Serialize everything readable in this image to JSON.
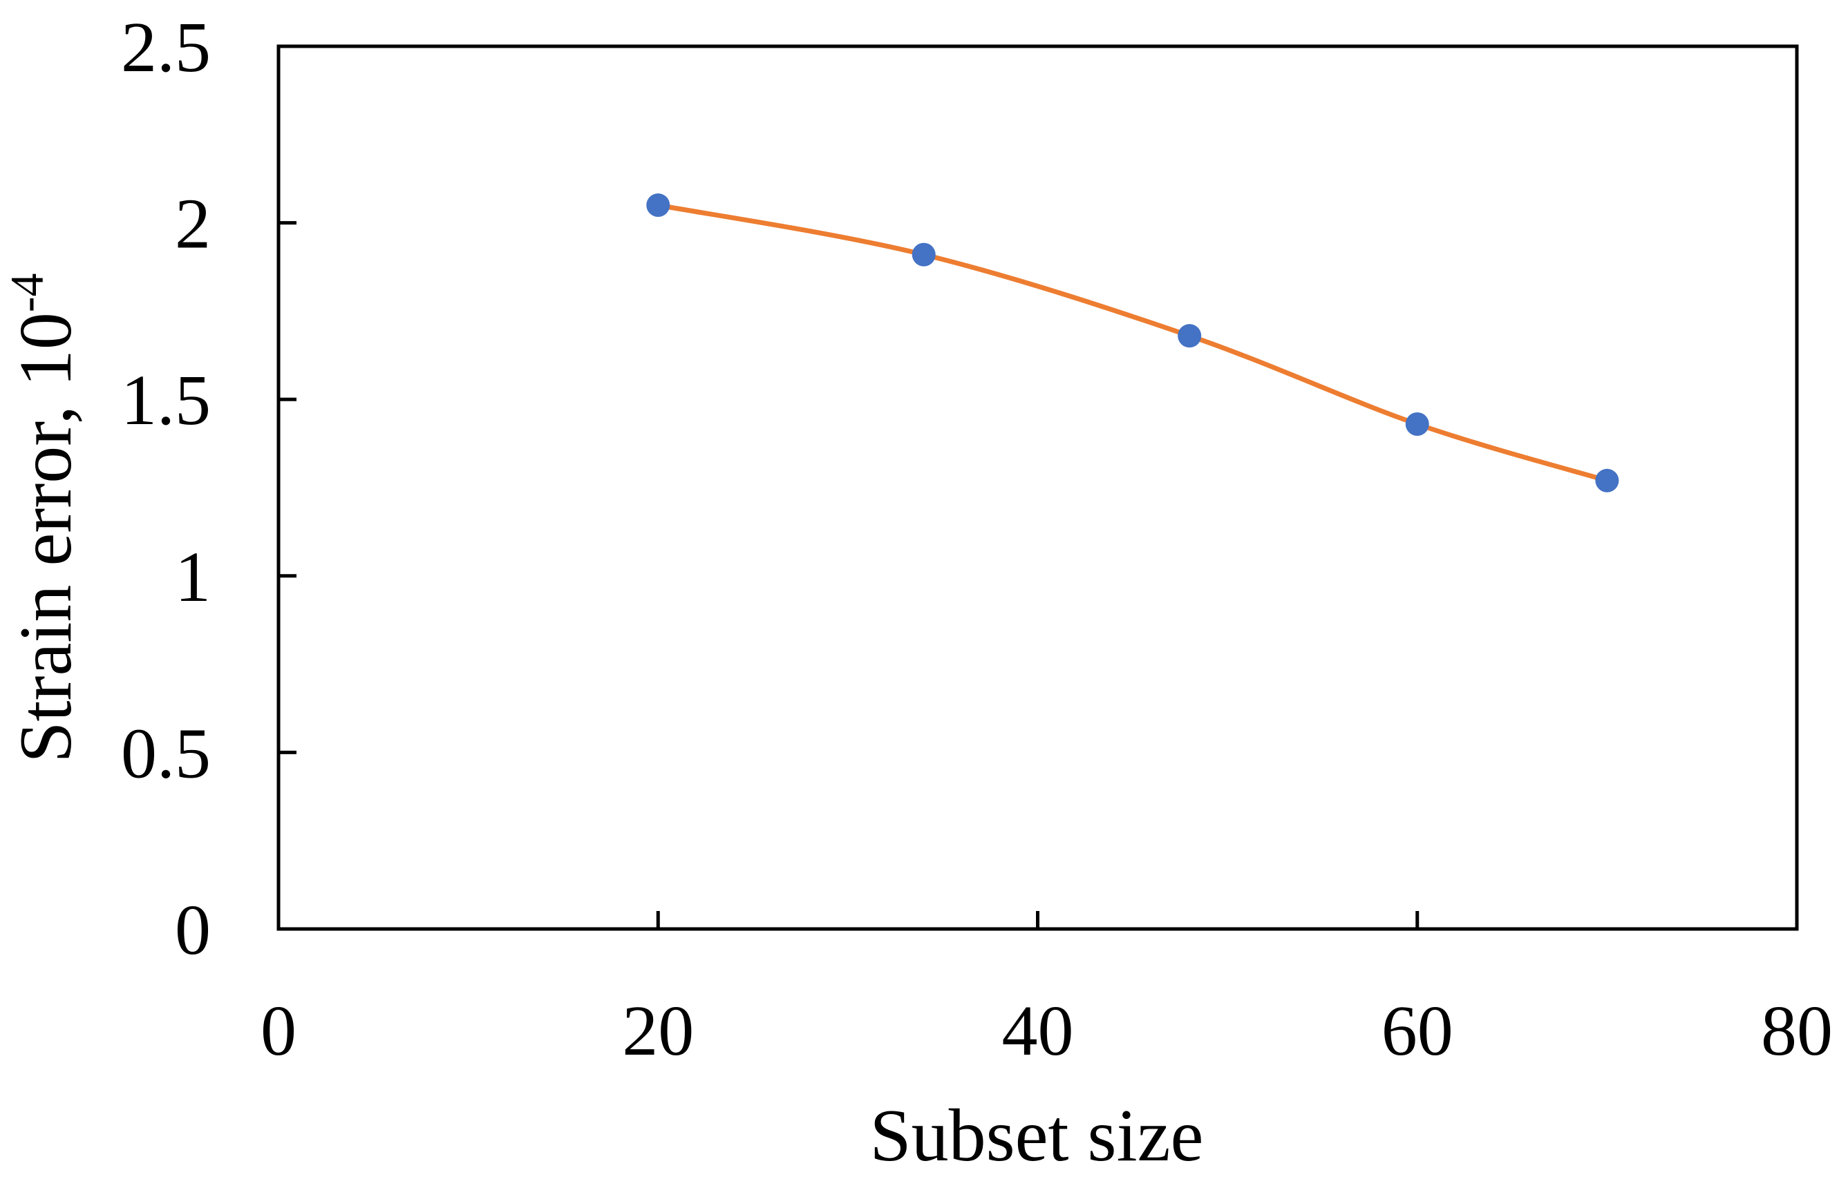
{
  "chart_data": {
    "type": "line",
    "title": "",
    "xlabel": "Subset size",
    "ylabel": {
      "text": "Strain error, 10",
      "superscript": "-4"
    },
    "xlim": [
      0,
      80
    ],
    "ylim": [
      0,
      2.5
    ],
    "xticks": [
      "0",
      "20",
      "40",
      "60",
      "80"
    ],
    "yticks": [
      "0",
      "0.5",
      "1",
      "1.5",
      "2",
      "2.5"
    ],
    "grid": false,
    "legend": "none",
    "series": [
      {
        "x": [
          20,
          34,
          48,
          60,
          70
        ],
        "y": [
          2.05,
          1.91,
          1.68,
          1.43,
          1.27
        ],
        "line_color": "#ED7D31",
        "marker_color": "#4472C4",
        "smooth": true
      }
    ]
  }
}
